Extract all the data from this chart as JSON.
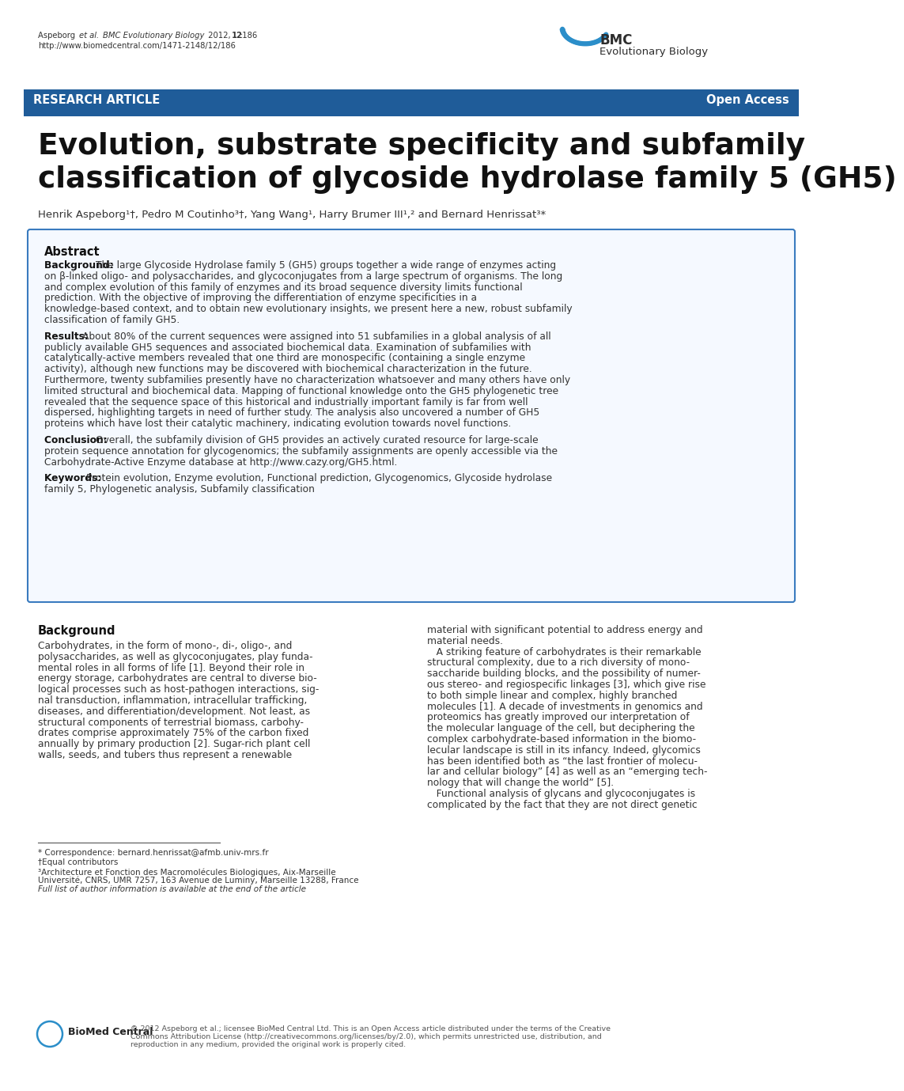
{
  "header_line1_normal": "Aspeborg ",
  "header_line1_italic": "et al.",
  "header_line1_normal2": " ",
  "header_line1_italic2": "BMC Evolutionary Biology",
  "header_line1_normal3": " 2012, ",
  "header_line1_bold": "12",
  "header_line1_normal4": ":186",
  "header_line2": "http://www.biomedcentral.com/1471-2148/12/186",
  "bmc_text1": "BMC",
  "bmc_text2": "Evolutionary Biology",
  "banner_left": "RESEARCH ARTICLE",
  "banner_right": "Open Access",
  "banner_color": "#1f5c99",
  "title_line1": "Evolution, substrate specificity and subfamily",
  "title_line2": "classification of glycoside hydrolase family 5 (GH5)",
  "authors": "Henrik Aspeborg¹†, Pedro M Coutinho³†, Yang Wang¹, Harry Brumer III¹,² and Bernard Henrissat³*",
  "abstract_title": "Abstract",
  "abstract_background_bold": "Background:",
  "abstract_background_text": "The large Glycoside Hydrolase family 5 (GH5) groups together a wide range of enzymes acting on β-linked oligo- and polysaccharides, and glycoconjugates from a large spectrum of organisms. The long and complex evolution of this family of enzymes and its broad sequence diversity limits functional prediction. With the objective of improving the differentiation of enzyme specificities in a knowledge-based context, and to obtain new evolutionary insights, we present here a new, robust subfamily classification of family GH5.",
  "abstract_results_bold": "Results:",
  "abstract_results_text": "About 80% of the current sequences were assigned into 51 subfamilies in a global analysis of all publicly available GH5 sequences and associated biochemical data. Examination of subfamilies with catalytically-active members revealed that one third are monospecific (containing a single enzyme activity), although new functions may be discovered with biochemical characterization in the future. Furthermore, twenty subfamilies presently have no characterization whatsoever and many others have only limited structural and biochemical data. Mapping of functional knowledge onto the GH5 phylogenetic tree revealed that the sequence space of this historical and industrially important family is far from well dispersed, highlighting targets in need of further study. The analysis also uncovered a number of GH5 proteins which have lost their catalytic machinery, indicating evolution towards novel functions.",
  "abstract_conclusion_bold": "Conclusion:",
  "abstract_conclusion_text": "Overall, the subfamily division of GH5 provides an actively curated resource for large-scale protein sequence annotation for glycogenomics; the subfamily assignments are openly accessible via the Carbohydrate-Active Enzyme database at http://www.cazy.org/GH5.html.",
  "abstract_keywords_bold": "Keywords:",
  "abstract_keywords_text": "Protein evolution, Enzyme evolution, Functional prediction, Glycogenomics, Glycoside hydrolase family 5, Phylogenetic analysis, Subfamily classification",
  "bg_color": "#ffffff",
  "section_background": "Background",
  "body_col1_lines": [
    "Carbohydrates, in the form of mono-, di-, oligo-, and",
    "polysaccharides, as well as glycoconjugates, play funda-",
    "mental roles in all forms of life [1]. Beyond their role in",
    "energy storage, carbohydrates are central to diverse bio-",
    "logical processes such as host-pathogen interactions, sig-",
    "nal transduction, inflammation, intracellular trafficking,",
    "diseases, and differentiation/development. Not least, as",
    "structural components of terrestrial biomass, carbohy-",
    "drates comprise approximately 75% of the carbon fixed",
    "annually by primary production [2]. Sugar-rich plant cell",
    "walls, seeds, and tubers thus represent a renewable"
  ],
  "body_col2_lines": [
    "material with significant potential to address energy and",
    "material needs.",
    "   A striking feature of carbohydrates is their remarkable",
    "structural complexity, due to a rich diversity of mono-",
    "saccharide building blocks, and the possibility of numer-",
    "ous stereo- and regiospecific linkages [3], which give rise",
    "to both simple linear and complex, highly branched",
    "molecules [1]. A decade of investments in genomics and",
    "proteomics has greatly improved our interpretation of",
    "the molecular language of the cell, but deciphering the",
    "complex carbohydrate-based information in the biomo-",
    "lecular landscape is still in its infancy. Indeed, glycomics",
    "has been identified both as “the last frontier of molecu-",
    "lar and cellular biology” [4] as well as an “emerging tech-",
    "nology that will change the world” [5].",
    "   Functional analysis of glycans and glycoconjugates is",
    "complicated by the fact that they are not direct genetic"
  ],
  "footnote_correspondence": "* Correspondence: bernard.henrissat@afmb.univ-mrs.fr",
  "footnote_equal": "†Equal contributors",
  "footnote_affil_line1": "³Architecture et Fonction des Macromolécules Biologiques, Aix-Marseille",
  "footnote_affil_line2": "Université, CNRS, UMR 7257, 163 Avenue de Luminy, Marseille 13288, France",
  "footnote_full": "Full list of author information is available at the end of the article",
  "copyright_line1": "© 2012 Aspeborg et al.; licensee BioMed Central Ltd. This is an Open Access article distributed under the terms of the Creative",
  "copyright_line2": "Commons Attribution License (http://creativecommons.org/licenses/by/2.0), which permits unrestricted use, distribution, and",
  "copyright_line3": "reproduction in any medium, provided the original work is properly cited.",
  "biomed_footer": "BioMed Central"
}
